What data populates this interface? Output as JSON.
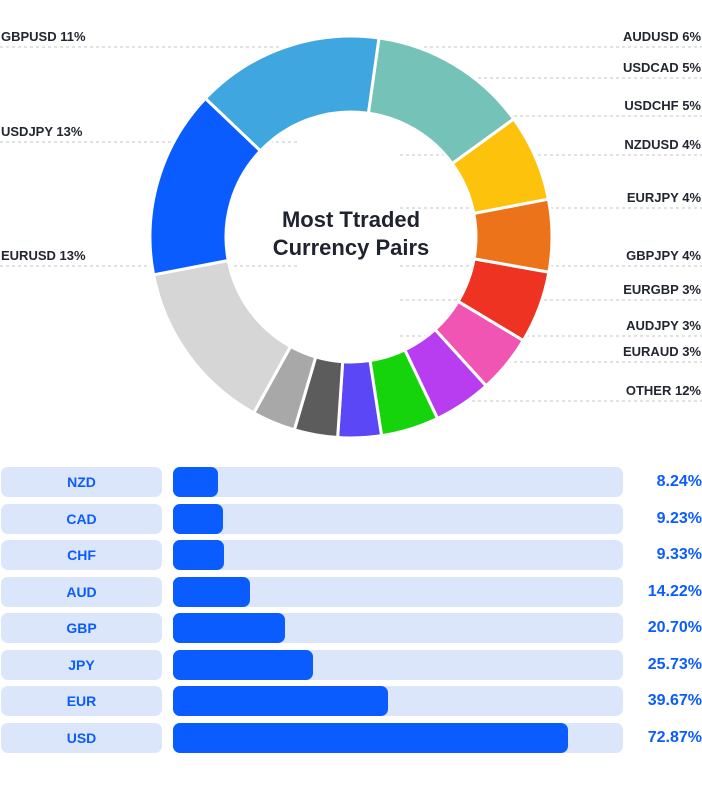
{
  "chart_data": [
    {
      "type": "pie",
      "title_lines": [
        "Most Ttraded",
        "Currency Pairs"
      ],
      "slices": [
        {
          "label": "GBPUSD 11%",
          "name": "GBPUSD",
          "value": 11,
          "color": "#74c2b8",
          "side": "left"
        },
        {
          "label": "AUDUSD 6%",
          "name": "AUDUSD",
          "value": 6,
          "color": "#fdc30c",
          "side": "right"
        },
        {
          "label": "USDCAD 5%",
          "name": "USDCAD",
          "value": 5,
          "color": "#ed731b",
          "side": "right"
        },
        {
          "label": "USDCHF 5%",
          "name": "USDCHF",
          "value": 5,
          "color": "#ee3322",
          "side": "right"
        },
        {
          "label": "NZDUSD 4%",
          "name": "NZDUSD",
          "value": 4,
          "color": "#f055b3",
          "side": "right"
        },
        {
          "label": "EURJPY 4%",
          "name": "EURJPY",
          "value": 4,
          "color": "#b83df0",
          "side": "right"
        },
        {
          "label": "GBPJPY 4%",
          "name": "GBPJPY",
          "value": 4,
          "color": "#16d40c",
          "side": "right"
        },
        {
          "label": "EURGBP 3%",
          "name": "EURGBP",
          "value": 3,
          "color": "#5b47f5",
          "side": "right"
        },
        {
          "label": "AUDJPY 3%",
          "name": "AUDJPY",
          "value": 3,
          "color": "#5c5c5c",
          "side": "right"
        },
        {
          "label": "EURAUD 3%",
          "name": "EURAUD",
          "value": 3,
          "color": "#a8a8a8",
          "side": "right"
        },
        {
          "label": "OTHER 12%",
          "name": "OTHER",
          "value": 12,
          "color": "#d6d6d6",
          "side": "right"
        },
        {
          "label": "EURUSD 13%",
          "name": "EURUSD",
          "value": 13,
          "color": "#0a5cff",
          "side": "left"
        },
        {
          "label": "USDJPY 13%",
          "name": "USDJPY",
          "value": 13,
          "color": "#3fa6e0",
          "side": "left"
        }
      ]
    },
    {
      "type": "bar",
      "categories": [
        "NZD",
        "CAD",
        "CHF",
        "AUD",
        "GBP",
        "JPY",
        "EUR",
        "USD"
      ],
      "values": [
        8.24,
        9.23,
        9.33,
        14.22,
        20.7,
        25.73,
        39.67,
        72.87
      ],
      "value_labels": [
        "8.24%",
        "9.23%",
        "9.33%",
        "14.22%",
        "20.70%",
        "25.73%",
        "39.67%",
        "72.87%"
      ],
      "xlim": [
        0,
        83
      ],
      "colors": {
        "bar": "#0a5cff",
        "track": "#dbe6fb",
        "text": "#0a5cff"
      }
    }
  ]
}
